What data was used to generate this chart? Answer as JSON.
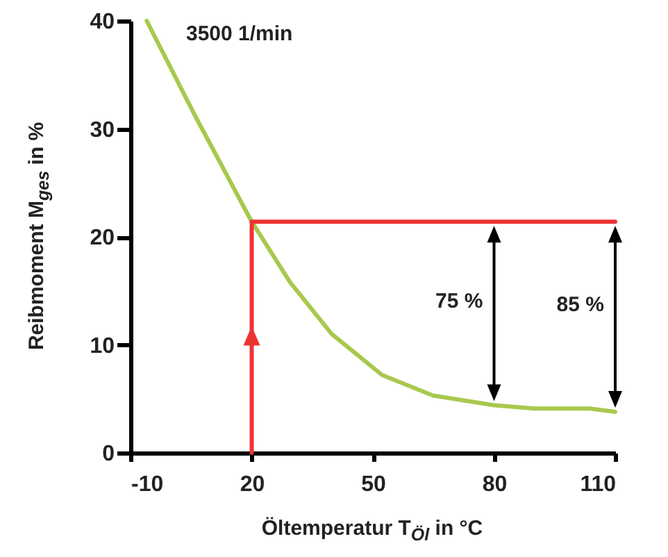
{
  "chart_data": {
    "type": "line",
    "xlabel": "Öltemperatur T$_{Öl}$ in °C",
    "ylabel": "Reibmoment  M$_{ges}$ in %",
    "xlim": [
      -10,
      110
    ],
    "xticks": [
      -10,
      20,
      50,
      80,
      110
    ],
    "ylim": [
      0,
      40
    ],
    "yticks": [
      0,
      10,
      20,
      30,
      40
    ],
    "grid": false,
    "series": [
      {
        "color": "#a8c84e",
        "x": [
          -6,
          6,
          20,
          29.5,
          39.8,
          52.3,
          64.9,
          80,
          90,
          103.7,
          110
        ],
        "values": [
          40,
          31.2,
          21.4,
          15.8,
          11.0,
          7.2,
          5.3,
          4.4,
          4.1,
          4.1,
          3.8
        ]
      },
      {
        "color": "#ee3333",
        "x": [
          20,
          20,
          110
        ],
        "values": [
          0,
          21.4,
          21.4
        ]
      }
    ],
    "annotations": [
      "3500 1/min",
      "75 %",
      "85 %"
    ]
  }
}
